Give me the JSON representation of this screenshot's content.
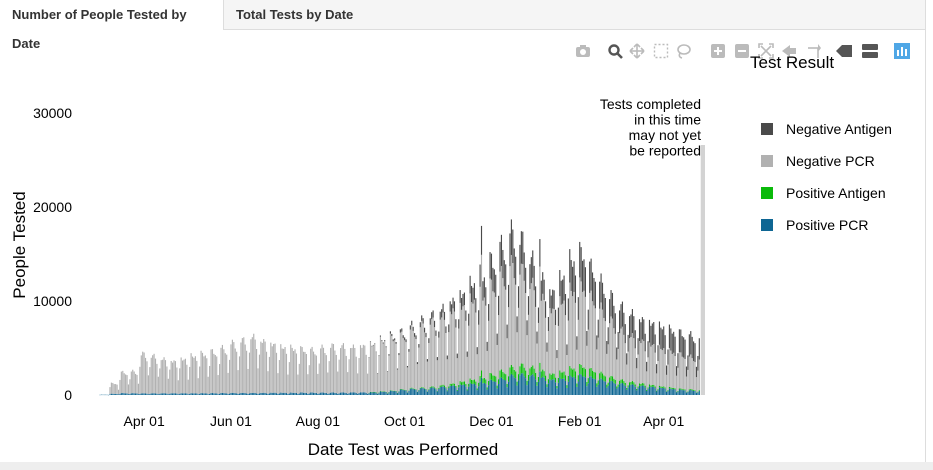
{
  "tabs": [
    {
      "label": "Number of People Tested by Date",
      "active": true
    },
    {
      "label": "Total Tests by Date",
      "active": false
    }
  ],
  "modebar": {
    "icons": [
      "camera-icon",
      "zoom-icon",
      "pan-icon",
      "box-select-icon",
      "lasso-icon",
      "zoom-in-icon",
      "zoom-out-icon",
      "autoscale-icon",
      "reset-axes-icon",
      "spike-lines-icon",
      "hover-closest-icon",
      "hover-compare-icon",
      "plotly-logo-icon"
    ],
    "colors": {
      "idle": "#bbbbbb",
      "logo": "#4fa7e6"
    }
  },
  "chart_data": {
    "type": "bar",
    "stacked": true,
    "title": "",
    "xlabel": "Date Test was Performed",
    "ylabel": "People Tested",
    "ylim": [
      0,
      33000
    ],
    "yticks": [
      0,
      10000,
      20000,
      30000
    ],
    "ytick_labels": [
      "0",
      "10000",
      "20000",
      "30000"
    ],
    "xlim": [
      "2020-03-01",
      "2021-04-30"
    ],
    "xticks": [
      "2020-04-01",
      "2020-06-01",
      "2020-08-01",
      "2020-10-01",
      "2020-12-01",
      "2021-02-01",
      "2021-04-01"
    ],
    "xtick_labels": [
      "Apr 01",
      "Jun 01",
      "Aug 01",
      "Oct 01",
      "Dec 01",
      "Feb 01",
      "Apr 01"
    ],
    "grid": false,
    "legend": {
      "title": "Test Result",
      "placement": "right"
    },
    "series_order_top_to_bottom": [
      "Negative Antigen",
      "Negative PCR",
      "Positive Antigen",
      "Positive PCR"
    ],
    "series": [
      {
        "name": "Positive PCR",
        "color": "#0e6693",
        "weekly_avg": [
          30,
          120,
          180,
          170,
          160,
          165,
          170,
          170,
          170,
          170,
          175,
          180,
          190,
          200,
          200,
          200,
          210,
          220,
          220,
          220,
          230,
          230,
          230,
          230,
          240,
          250,
          260,
          280,
          330,
          400,
          500,
          600,
          650,
          700,
          800,
          900,
          1000,
          1100,
          1200,
          1400,
          1600,
          1900,
          2000,
          1900,
          1700,
          1500,
          1600,
          1800,
          1900,
          1700,
          1500,
          1300,
          1100,
          1000,
          900,
          800,
          700,
          600,
          500,
          450,
          400,
          350,
          320,
          300,
          280,
          260,
          250,
          250,
          240,
          240
        ]
      },
      {
        "name": "Positive Antigen",
        "color": "#0aba0a",
        "weekly_avg": [
          0,
          0,
          0,
          0,
          0,
          0,
          0,
          0,
          0,
          0,
          0,
          0,
          0,
          0,
          0,
          0,
          0,
          0,
          0,
          0,
          0,
          0,
          0,
          0,
          0,
          0,
          0,
          10,
          20,
          30,
          50,
          60,
          70,
          100,
          150,
          200,
          300,
          400,
          500,
          600,
          700,
          800,
          900,
          800,
          650,
          550,
          650,
          800,
          900,
          750,
          600,
          450,
          350,
          280,
          220,
          180,
          140,
          120,
          100,
          90,
          80,
          70,
          60,
          50,
          50,
          45,
          40,
          40,
          40,
          40
        ]
      },
      {
        "name": "Negative PCR",
        "color": "#b1b1b1",
        "weekly_avg": [
          0,
          1000,
          2000,
          2100,
          3800,
          3600,
          3300,
          3100,
          3300,
          3600,
          3800,
          4000,
          4300,
          4800,
          5100,
          5400,
          5000,
          4700,
          4400,
          4300,
          4200,
          4100,
          4300,
          4500,
          4500,
          4400,
          4500,
          4600,
          4900,
          5100,
          5200,
          5600,
          6000,
          6300,
          6600,
          7000,
          7300,
          7700,
          8000,
          8600,
          9300,
          9900,
          9200,
          8000,
          7000,
          6200,
          6800,
          7500,
          7800,
          7000,
          6200,
          5400,
          4800,
          4400,
          4100,
          3900,
          3700,
          3500,
          3300,
          3100,
          3000,
          2900,
          2800,
          2700,
          2700,
          2700,
          2700,
          2700,
          2700,
          2600
        ]
      },
      {
        "name": "Negative Antigen",
        "color": "#4a4a4a",
        "weekly_avg": [
          0,
          0,
          0,
          0,
          0,
          0,
          0,
          0,
          0,
          0,
          0,
          0,
          0,
          0,
          0,
          0,
          0,
          0,
          0,
          0,
          0,
          0,
          0,
          0,
          0,
          0,
          0,
          50,
          100,
          200,
          300,
          400,
          500,
          650,
          800,
          1000,
          1200,
          1600,
          2000,
          2400,
          2800,
          3200,
          3000,
          2500,
          2000,
          1800,
          2400,
          3000,
          3200,
          2900,
          2600,
          2400,
          2300,
          2200,
          2100,
          2100,
          2100,
          2100,
          2100,
          2100,
          2100,
          2100,
          2100,
          2100,
          2100,
          2100,
          2100,
          2100,
          2100,
          2100
        ]
      }
    ],
    "series_start": "2020-03-01",
    "peak_annotations": [
      {
        "date": "2020-11-24",
        "total": 18000
      },
      {
        "date": "2021-01-04",
        "total": 16600
      }
    ],
    "weekday_pattern": [
      0.78,
      1.12,
      1.12,
      1.1,
      1.05,
      0.93,
      0.5
    ],
    "reporting_lag_band": {
      "start": "2021-04-27",
      "end": "2021-04-30",
      "color": "#d3d3d3",
      "annotation": [
        "Tests completed",
        "in this time",
        "may not yet",
        "be reported"
      ]
    }
  }
}
